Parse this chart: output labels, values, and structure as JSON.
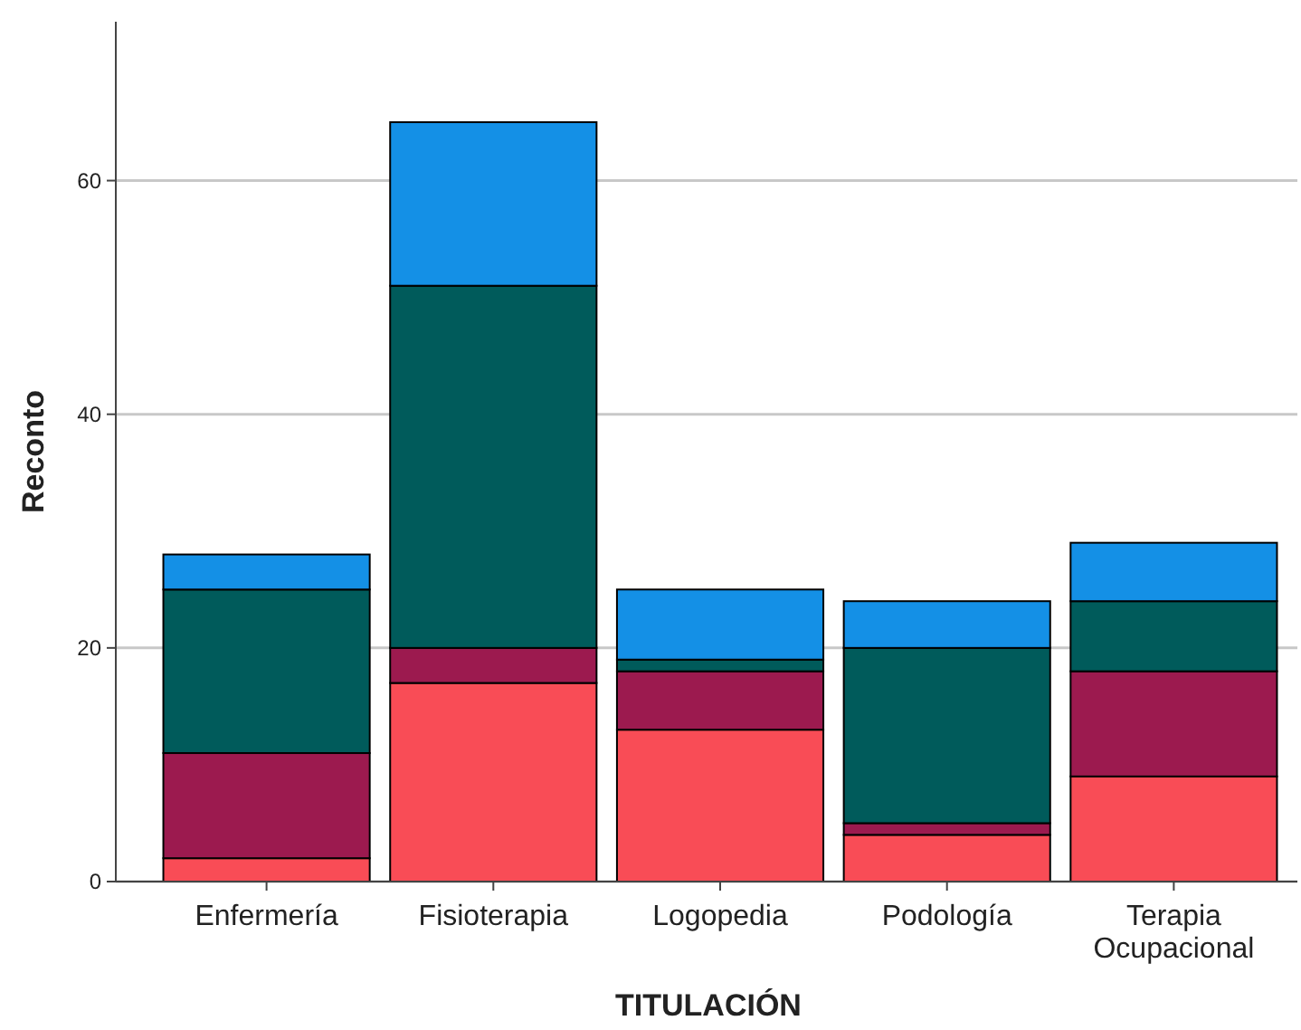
{
  "chart_data": {
    "type": "bar",
    "stacked": true,
    "xlabel": "TITULACIÓN",
    "ylabel": "Reconto",
    "categories": [
      "Enfermería",
      "Fisioterapia",
      "Logopedia",
      "Podología",
      "Terapia Ocupacional"
    ],
    "series": [
      {
        "color": "#f94c56",
        "values": [
          2,
          17,
          13,
          4,
          9
        ]
      },
      {
        "color": "#9c1a4f",
        "values": [
          9,
          3,
          5,
          1,
          9
        ]
      },
      {
        "color": "#005b5b",
        "values": [
          14,
          31,
          1,
          15,
          6
        ]
      },
      {
        "color": "#1490e6",
        "values": [
          3,
          14,
          6,
          4,
          5
        ]
      }
    ],
    "ylim": [
      0,
      73.6
    ],
    "yticks": [
      0,
      20,
      40,
      60
    ],
    "grid": "y"
  }
}
